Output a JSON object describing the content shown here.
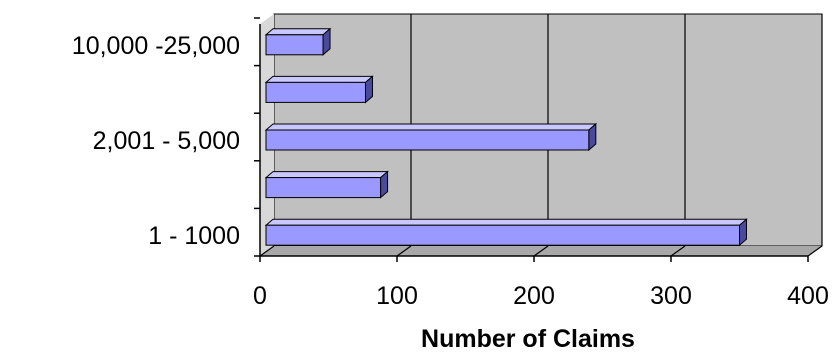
{
  "chart_data": {
    "type": "bar",
    "orientation": "horizontal",
    "style": "3d",
    "categories": [
      "1 - 1000",
      "",
      "2,001 - 5,000",
      "",
      "10,000  -25,000"
    ],
    "values": [
      350,
      88,
      240,
      77,
      46
    ],
    "xlabel": "Number of Claims",
    "ylabel": "",
    "title": "",
    "xlim": [
      0,
      400
    ],
    "xticks": [
      0,
      100,
      200,
      300,
      400
    ],
    "grid": "vertical",
    "legend": "none",
    "colors": {
      "bar_front": "#9999ff",
      "bar_top": "#c8c8ff",
      "bar_side": "#4a4a9a",
      "bar_outline": "#000000",
      "back_wall": "#c0c0c0",
      "floor": "#a8a8a8",
      "gridline": "#000000"
    }
  }
}
